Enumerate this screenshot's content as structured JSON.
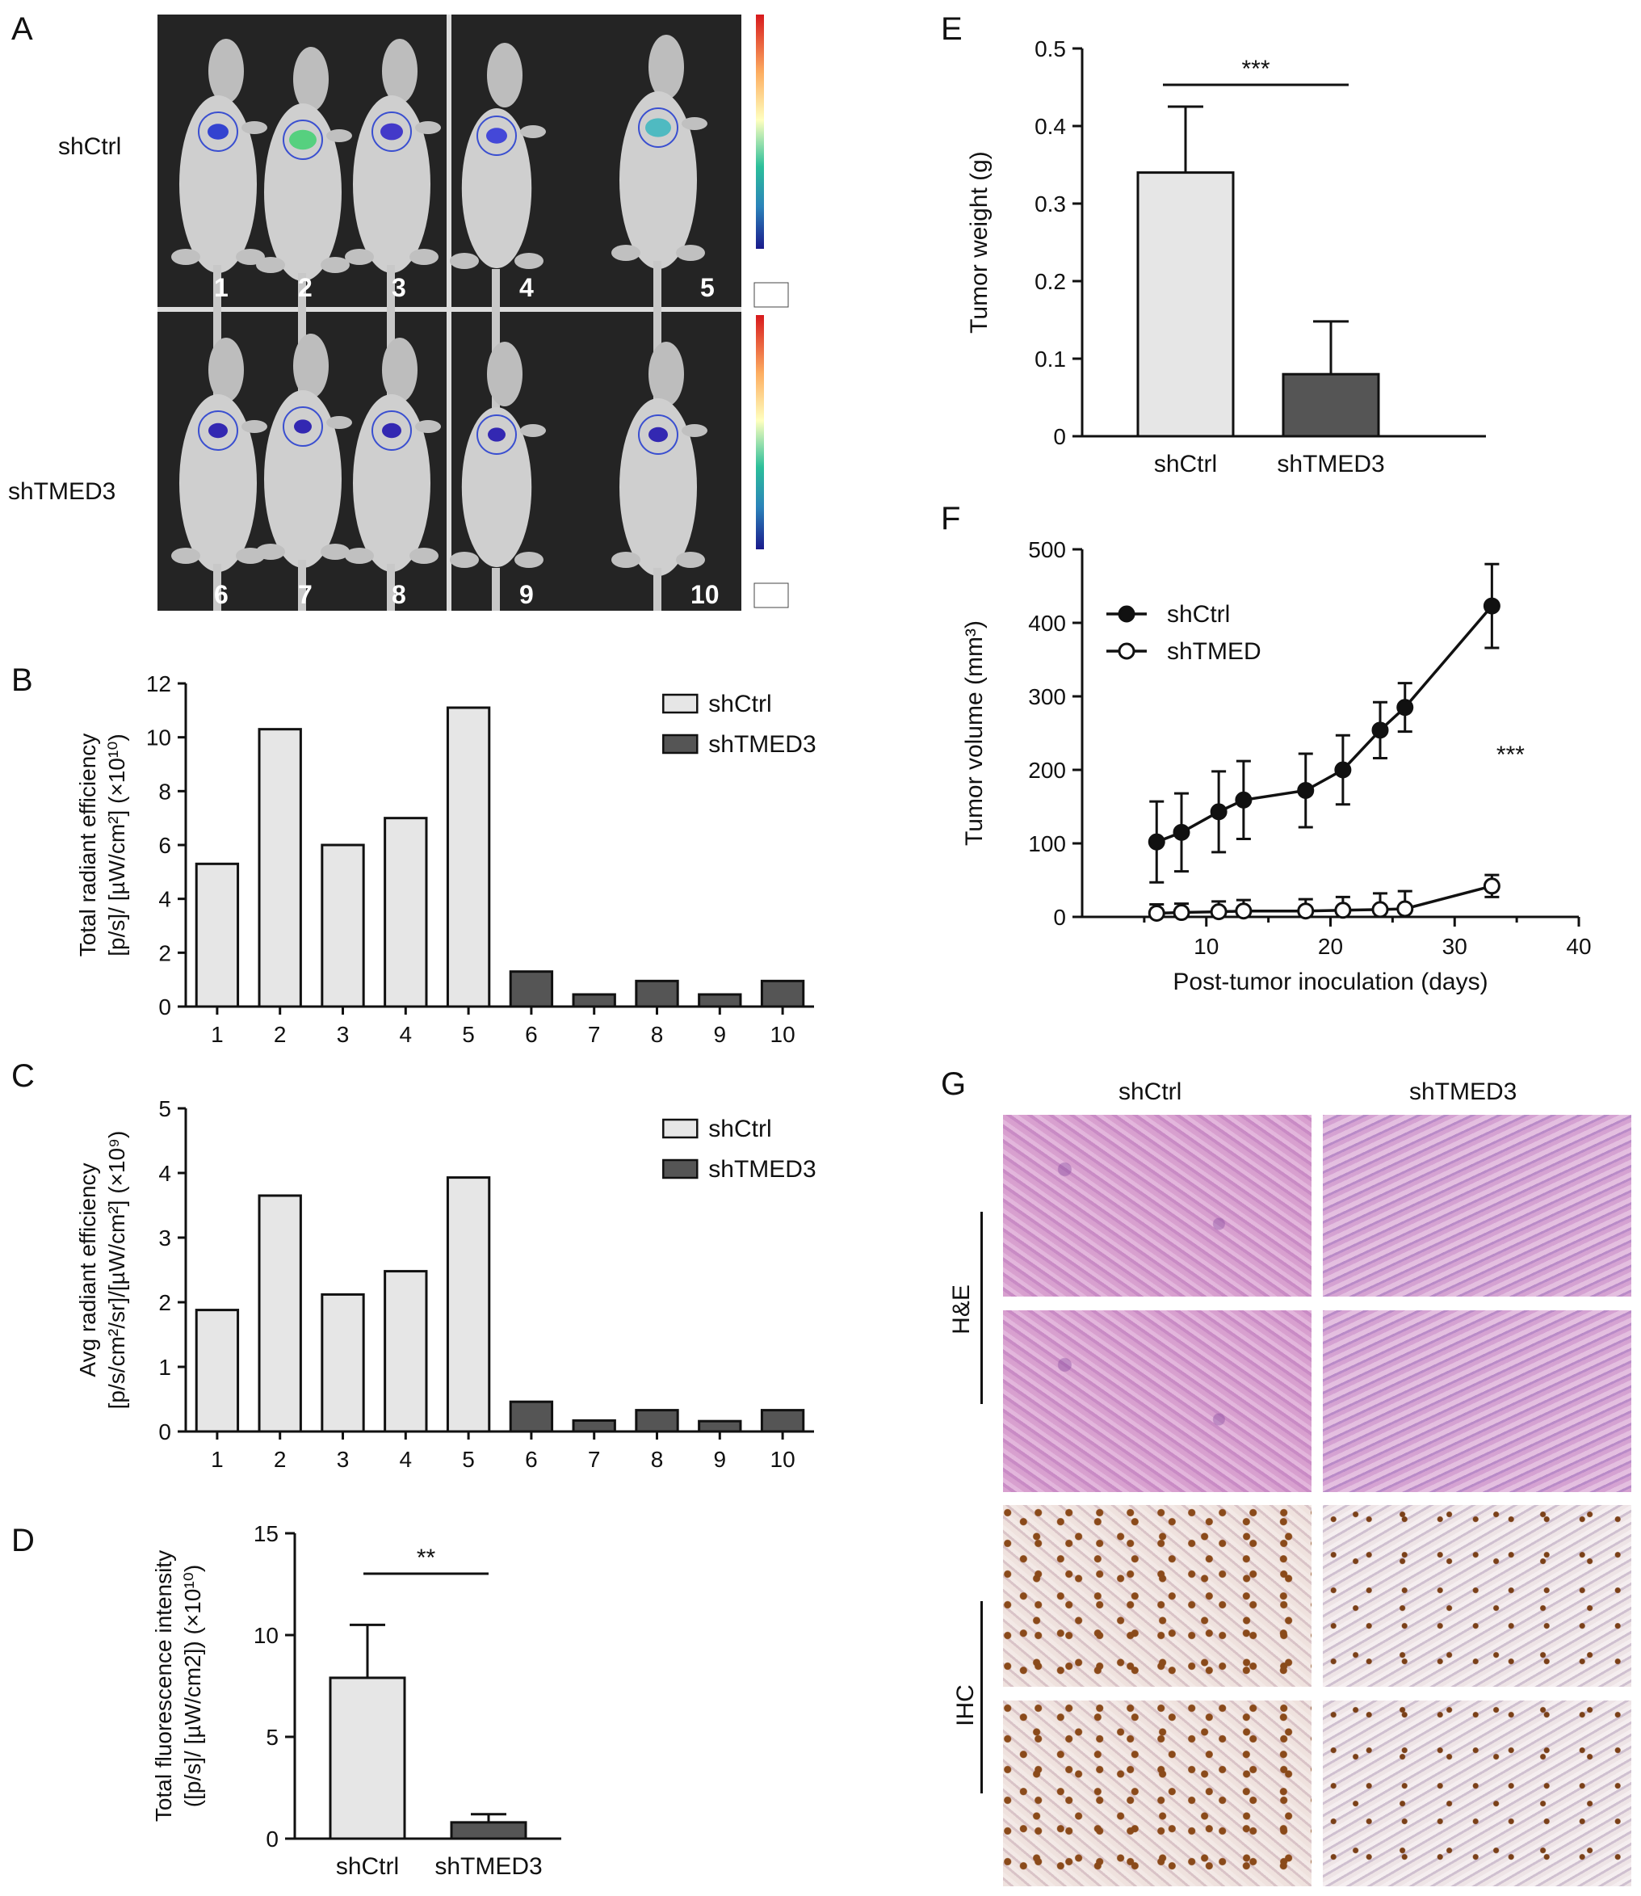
{
  "panels": {
    "A": "A",
    "B": "B",
    "C": "C",
    "D": "D",
    "E": "E",
    "F": "F",
    "G": "G"
  },
  "panel_a": {
    "row_labels": [
      "shCtrl",
      "shTMED3"
    ],
    "mouse_numbers_top": [
      "1",
      "2",
      "3",
      "4",
      "5"
    ],
    "mouse_numbers_bottom": [
      "6",
      "7",
      "8",
      "9",
      "10"
    ]
  },
  "panel_g": {
    "column_labels": [
      "shCtrl",
      "shTMED3"
    ],
    "row_labels": [
      "H&E",
      "IHC"
    ]
  },
  "chart_data": [
    {
      "id": "B",
      "type": "bar",
      "categories": [
        "1",
        "2",
        "3",
        "4",
        "5",
        "6",
        "7",
        "8",
        "9",
        "10"
      ],
      "series": [
        {
          "name": "shCtrl",
          "color": "#e6e6e6",
          "values": [
            5.3,
            10.3,
            6.0,
            7.0,
            11.1,
            null,
            null,
            null,
            null,
            null
          ]
        },
        {
          "name": "shTMED3",
          "color": "#555555",
          "values": [
            null,
            null,
            null,
            null,
            null,
            1.3,
            0.45,
            0.95,
            0.45,
            0.95
          ]
        }
      ],
      "ylabel_line1": "Total radiant efficiency",
      "ylabel_line2": "[p/s]/ [µW/cm²] (×10¹⁰)",
      "ylim": [
        0,
        12
      ],
      "yticks": [
        "0",
        "2",
        "4",
        "6",
        "8",
        "10",
        "12"
      ],
      "legend": "top-right"
    },
    {
      "id": "C",
      "type": "bar",
      "categories": [
        "1",
        "2",
        "3",
        "4",
        "5",
        "6",
        "7",
        "8",
        "9",
        "10"
      ],
      "series": [
        {
          "name": "shCtrl",
          "color": "#e6e6e6",
          "values": [
            1.88,
            3.65,
            2.12,
            2.48,
            3.93,
            null,
            null,
            null,
            null,
            null
          ]
        },
        {
          "name": "shTMED3",
          "color": "#555555",
          "values": [
            null,
            null,
            null,
            null,
            null,
            0.46,
            0.17,
            0.33,
            0.16,
            0.33
          ]
        }
      ],
      "ylabel_line1": "Avg radiant efficiency",
      "ylabel_line2": "[p/s/cm²/sr]/[µW/cm²] (×10⁹)",
      "ylim": [
        0,
        5
      ],
      "yticks": [
        "0",
        "1",
        "2",
        "3",
        "4",
        "5"
      ],
      "legend": "top-right"
    },
    {
      "id": "D",
      "type": "bar",
      "categories": [
        "shCtrl",
        "shTMED3"
      ],
      "values": [
        7.9,
        0.8
      ],
      "errors": [
        2.6,
        0.4
      ],
      "colors": [
        "#e6e6e6",
        "#555555"
      ],
      "ylabel_line1": "Total fluorescence intensity",
      "ylabel_line2": "([p/s]/ [µW/cm2]) (×10¹⁰)",
      "ylim": [
        0,
        15
      ],
      "yticks": [
        "0",
        "5",
        "10",
        "15"
      ],
      "significance": "**"
    },
    {
      "id": "E",
      "type": "bar",
      "categories": [
        "shCtrl",
        "shTMED3"
      ],
      "values": [
        0.34,
        0.08
      ],
      "errors": [
        0.085,
        0.068
      ],
      "colors": [
        "#e6e6e6",
        "#555555"
      ],
      "ylabel": "Tumor weight (g)",
      "ylim": [
        0,
        0.5
      ],
      "yticks": [
        "0",
        "0.1",
        "0.2",
        "0.3",
        "0.4",
        "0.5"
      ],
      "significance": "***"
    },
    {
      "id": "F",
      "type": "line",
      "x": [
        6,
        8,
        11,
        13,
        18,
        21,
        24,
        26,
        33
      ],
      "series": [
        {
          "name": "shCtrl",
          "marker": "filled",
          "values": [
            102,
            115,
            143,
            159,
            172,
            200,
            254,
            285,
            423
          ],
          "errors": [
            55,
            53,
            55,
            53,
            50,
            47,
            38,
            33,
            57
          ]
        },
        {
          "name": "shTMED",
          "marker": "open",
          "values": [
            5,
            6,
            7,
            8,
            8,
            9,
            10,
            11,
            42
          ],
          "errors": [
            12,
            12,
            14,
            15,
            16,
            18,
            22,
            24,
            15
          ]
        }
      ],
      "xlabel": "Post-tumor inoculation (days)",
      "ylabel": "Tumor volume (mm³)",
      "xlim": [
        0,
        40
      ],
      "ylim": [
        0,
        500
      ],
      "xticks": [
        "10",
        "20",
        "30",
        "40"
      ],
      "yticks": [
        "0",
        "100",
        "200",
        "300",
        "400",
        "500"
      ],
      "legend": "top-left",
      "significance": "***"
    }
  ]
}
